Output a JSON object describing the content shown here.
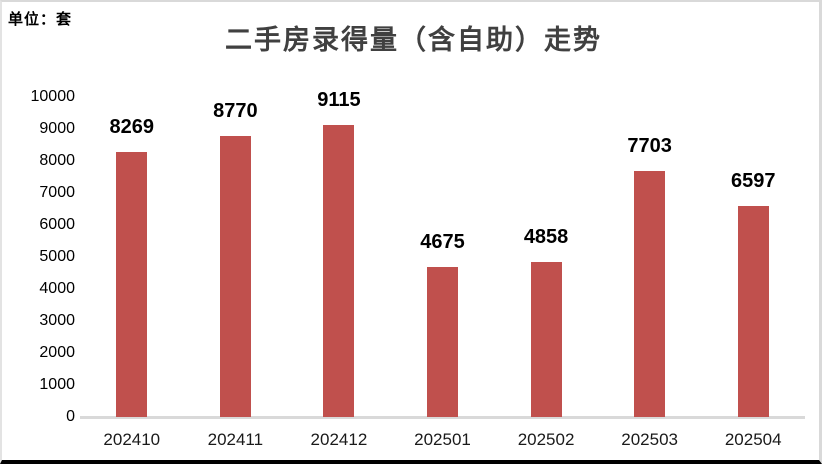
{
  "header": {
    "unit_label": "单位：套"
  },
  "chart_data": {
    "type": "bar",
    "title": "二手房录得量（含自助）走势",
    "categories": [
      "202410",
      "202411",
      "202412",
      "202501",
      "202502",
      "202503",
      "202504"
    ],
    "values": [
      8269,
      8770,
      9115,
      4675,
      4858,
      7703,
      6597
    ],
    "xlabel": "",
    "ylabel": "单位：套",
    "ylim": [
      0,
      10000
    ],
    "yticks": [
      0,
      1000,
      2000,
      3000,
      4000,
      5000,
      6000,
      7000,
      8000,
      9000,
      10000
    ],
    "grid": false,
    "legend": "none",
    "data_labels": true
  },
  "colors": {
    "bar": "#c0504d",
    "title": "#404040",
    "axis_line": "#d9d9d9",
    "tick_text": "#000000",
    "frame_border": "#d9d9d9",
    "bottom_border": "#000000"
  }
}
